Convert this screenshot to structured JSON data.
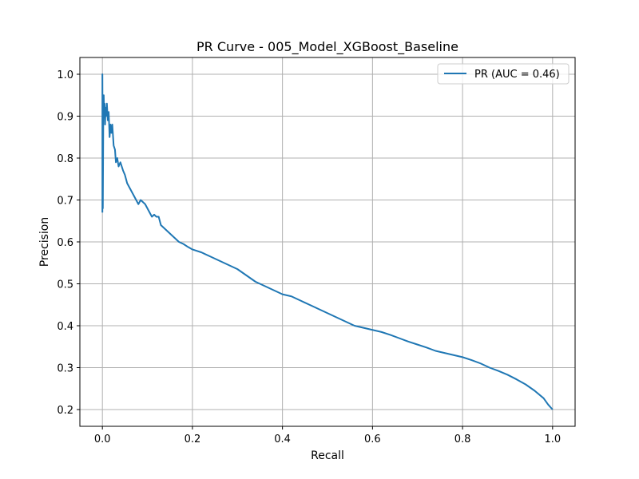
{
  "chart_data": {
    "type": "line",
    "title": "PR Curve - 005_Model_XGBoost_Baseline",
    "xlabel": "Recall",
    "ylabel": "Precision",
    "xlim": [
      -0.05,
      1.05
    ],
    "ylim": [
      0.16,
      1.04
    ],
    "xticks": [
      0.0,
      0.2,
      0.4,
      0.6,
      0.8,
      1.0
    ],
    "xtick_labels": [
      "0.0",
      "0.2",
      "0.4",
      "0.6",
      "0.8",
      "1.0"
    ],
    "yticks": [
      0.2,
      0.3,
      0.4,
      0.5,
      0.6,
      0.7,
      0.8,
      0.9,
      1.0
    ],
    "ytick_labels": [
      "0.2",
      "0.3",
      "0.4",
      "0.5",
      "0.6",
      "0.7",
      "0.8",
      "0.9",
      "1.0"
    ],
    "grid": true,
    "legend_position": "top-right",
    "series": [
      {
        "name": "PR (AUC = 0.46)",
        "color": "#1f77b4",
        "x": [
          0.0,
          0.0,
          0.001,
          0.002,
          0.003,
          0.004,
          0.005,
          0.006,
          0.007,
          0.008,
          0.01,
          0.012,
          0.014,
          0.016,
          0.018,
          0.02,
          0.022,
          0.025,
          0.028,
          0.03,
          0.033,
          0.036,
          0.04,
          0.043,
          0.046,
          0.05,
          0.055,
          0.06,
          0.065,
          0.07,
          0.075,
          0.08,
          0.085,
          0.09,
          0.095,
          0.1,
          0.105,
          0.11,
          0.115,
          0.12,
          0.125,
          0.13,
          0.14,
          0.15,
          0.16,
          0.17,
          0.18,
          0.19,
          0.2,
          0.22,
          0.24,
          0.26,
          0.28,
          0.3,
          0.32,
          0.34,
          0.36,
          0.38,
          0.4,
          0.42,
          0.44,
          0.46,
          0.48,
          0.5,
          0.52,
          0.54,
          0.56,
          0.58,
          0.6,
          0.62,
          0.64,
          0.66,
          0.68,
          0.7,
          0.72,
          0.74,
          0.76,
          0.78,
          0.8,
          0.82,
          0.84,
          0.86,
          0.88,
          0.9,
          0.92,
          0.94,
          0.96,
          0.98,
          0.99,
          1.0
        ],
        "y": [
          0.67,
          1.0,
          0.68,
          0.89,
          0.95,
          0.9,
          0.93,
          0.88,
          0.92,
          0.9,
          0.93,
          0.89,
          0.91,
          0.85,
          0.88,
          0.86,
          0.88,
          0.83,
          0.82,
          0.79,
          0.8,
          0.78,
          0.79,
          0.78,
          0.77,
          0.76,
          0.74,
          0.73,
          0.72,
          0.71,
          0.7,
          0.69,
          0.7,
          0.695,
          0.69,
          0.68,
          0.67,
          0.66,
          0.665,
          0.66,
          0.66,
          0.64,
          0.63,
          0.62,
          0.61,
          0.6,
          0.595,
          0.588,
          0.582,
          0.575,
          0.565,
          0.555,
          0.545,
          0.535,
          0.52,
          0.505,
          0.495,
          0.485,
          0.475,
          0.47,
          0.46,
          0.45,
          0.44,
          0.43,
          0.42,
          0.41,
          0.4,
          0.395,
          0.39,
          0.385,
          0.378,
          0.37,
          0.362,
          0.355,
          0.348,
          0.34,
          0.335,
          0.33,
          0.325,
          0.318,
          0.31,
          0.3,
          0.292,
          0.283,
          0.272,
          0.26,
          0.245,
          0.227,
          0.212,
          0.2
        ]
      }
    ]
  }
}
